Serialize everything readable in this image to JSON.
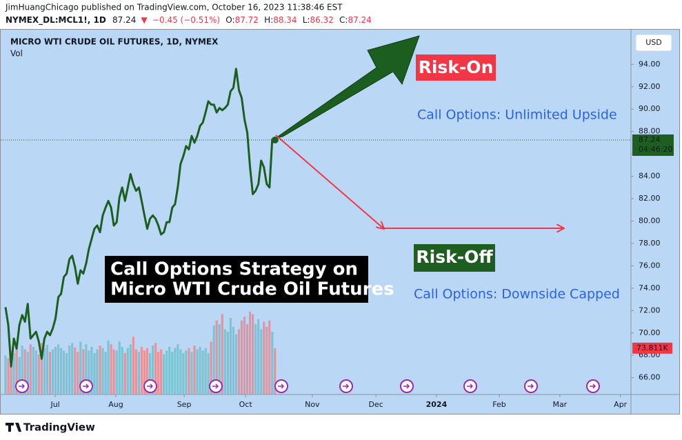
{
  "header": {
    "publisher": "JimHuangChicago published on TradingView.com, October 16, 2023 11:38:46 EST",
    "symbol": "NYMEX_DL:MCL1!, 1D",
    "last": "87.24",
    "direction": "▼",
    "change": "−0.45 (−0.51%)",
    "ohlc": [
      {
        "label": "O:",
        "value": "87.72"
      },
      {
        "label": "H:",
        "value": "88.34"
      },
      {
        "label": "L:",
        "value": "86.32"
      },
      {
        "label": "C:",
        "value": "87.24"
      }
    ]
  },
  "chart_data": {
    "type": "line",
    "title": "MICRO WTI CRUDE OIL FUTURES, 1D, NYMEX",
    "currency": "USD",
    "xlim": [
      0,
      225.1
    ],
    "ylim": [
      64.5,
      97.1
    ],
    "xticks": [
      {
        "value": 17.9,
        "label": "Jul"
      },
      {
        "value": 39.7,
        "label": "Aug"
      },
      {
        "value": 64.3,
        "label": "Sep"
      },
      {
        "value": 86.4,
        "label": "Oct"
      },
      {
        "value": 110.4,
        "label": "Nov"
      },
      {
        "value": 133.3,
        "label": "Dec"
      },
      {
        "value": 155.1,
        "label": "2024"
      },
      {
        "value": 177.7,
        "label": "Feb"
      },
      {
        "value": 199.5,
        "label": "Mar"
      },
      {
        "value": 221.3,
        "label": "Apr"
      }
    ],
    "yticks": [
      {
        "value": 66,
        "label": "66.00"
      },
      {
        "value": 68,
        "label": "68.00"
      },
      {
        "value": 70,
        "label": "70.00"
      },
      {
        "value": 72,
        "label": "72.00"
      },
      {
        "value": 74,
        "label": "74.00"
      },
      {
        "value": 76,
        "label": "76.00"
      },
      {
        "value": 78,
        "label": "78.00"
      },
      {
        "value": 80,
        "label": "80.00"
      },
      {
        "value": 82,
        "label": "82.00"
      },
      {
        "value": 84,
        "label": "84.00"
      },
      {
        "value": 86,
        "label": "86.00"
      },
      {
        "value": 88,
        "label": "88.00"
      },
      {
        "value": 90,
        "label": "90.00"
      },
      {
        "value": 92,
        "label": "92.00"
      },
      {
        "value": 94,
        "label": "94.00"
      }
    ],
    "series": [
      {
        "color": "#1b5e20",
        "values": [
          72.3,
          70.7,
          67.0,
          69.5,
          68.6,
          70.7,
          71.6,
          71.0,
          72.6,
          69.5,
          69.8,
          70.1,
          69.2,
          67.7,
          69.5,
          70.1,
          69.8,
          70.4,
          71.3,
          73.2,
          73.5,
          75.0,
          75.3,
          76.6,
          76.9,
          75.9,
          74.4,
          75.6,
          75.3,
          76.2,
          77.5,
          78.4,
          79.3,
          79.6,
          79.0,
          80.5,
          81.2,
          81.8,
          81.2,
          79.6,
          79.9,
          82.1,
          83.0,
          81.8,
          83.0,
          84.2,
          83.3,
          82.7,
          83.0,
          81.8,
          80.5,
          79.3,
          80.2,
          80.5,
          80.2,
          79.6,
          78.8,
          79.0,
          79.9,
          79.9,
          81.2,
          81.5,
          83.0,
          85.1,
          85.8,
          86.7,
          86.4,
          87.6,
          87.0,
          87.6,
          88.5,
          88.8,
          89.7,
          90.7,
          90.4,
          90.4,
          89.7,
          90.1,
          89.9,
          90.1,
          90.4,
          91.6,
          91.9,
          93.6,
          91.7,
          91.0,
          89.1,
          87.9,
          84.8,
          82.4,
          82.7,
          83.3,
          85.4,
          84.8,
          83.3,
          83.0,
          87.3,
          87.24
        ]
      }
    ],
    "countdown": "04:46:20",
    "volume": {
      "name": "Vol",
      "up_color": "#7cc3d4",
      "down_color": "#e8939c",
      "last_label": "73.811K",
      "values": [
        62,
        58,
        70,
        66,
        74,
        60,
        78,
        72,
        68,
        80,
        76,
        70,
        64,
        82,
        74,
        79,
        68,
        72,
        76,
        80,
        74,
        70,
        66,
        78,
        82,
        75,
        68,
        84,
        72,
        80,
        70,
        76,
        66,
        72,
        78,
        74,
        68,
        86,
        80,
        72,
        70,
        84,
        76,
        66,
        74,
        80,
        92,
        72,
        68,
        76,
        70,
        74,
        66,
        78,
        82,
        68,
        72,
        64,
        70,
        76,
        68,
        74,
        80,
        72,
        66,
        70,
        74,
        68,
        78,
        72,
        76,
        70,
        74,
        66,
        84,
        110,
        118,
        112,
        128,
        104,
        100,
        122,
        108,
        96,
        104,
        118,
        124,
        112,
        132,
        128,
        112,
        120,
        104,
        116,
        108,
        118,
        100,
        73.811
      ]
    },
    "annotations": {
      "risk_on": "Risk-On",
      "upside": "Call Options: Unlimited Upside",
      "risk_off": "Risk-Off",
      "downside": "Call Options: Downside Capped",
      "strategy": [
        "Call Options Strategy on",
        "Micro WTI Crude Oil Futures"
      ]
    }
  },
  "footer": {
    "brand": "TradingView"
  }
}
